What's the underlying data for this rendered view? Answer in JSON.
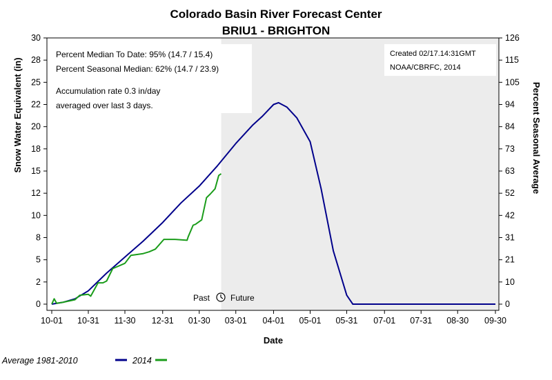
{
  "chart_data": {
    "type": "line",
    "title": "Colorado Basin River Forecast Center",
    "subtitle": "BRIU1 - BRIGHTON",
    "xlabel": "Date",
    "ylabel": "Snow Water Equivalent (in)",
    "ylabel_right": "Percent Seasonal Average",
    "x_ticks": [
      "10-01",
      "10-31",
      "11-30",
      "12-31",
      "01-30",
      "03-01",
      "04-01",
      "05-01",
      "05-31",
      "07-01",
      "07-31",
      "08-30",
      "09-30"
    ],
    "y_ticks": [
      "0",
      "2",
      "5",
      "8",
      "10",
      "12",
      "15",
      "18",
      "20",
      "22",
      "25",
      "28",
      "30"
    ],
    "y_ticks_right": [
      "0",
      "10",
      "21",
      "31",
      "42",
      "52",
      "63",
      "73",
      "84",
      "94",
      "105",
      "115",
      "126"
    ],
    "ylim": [
      0,
      30
    ],
    "ylim_right": [
      0,
      126
    ],
    "x_range": [
      "10-01",
      "09-30"
    ],
    "grid": false,
    "future_shading": {
      "from": "02-17",
      "to": "09-30",
      "color": "#ececec"
    },
    "past_label": "Past",
    "future_label": "Future",
    "info_left": [
      "Percent Median To Date: 95% (14.7 / 15.4)",
      "Percent Seasonal Median: 62% (14.7 / 23.9)",
      "Accumulation rate 0.3 in/day",
      "averaged over last 3 days."
    ],
    "info_right": [
      "Created 02/17.14:31GMT",
      "NOAA/CBRFC, 2014"
    ],
    "legend_placement": "bottom-left",
    "series": [
      {
        "name": "Average 1981-2010",
        "color": "#00008b",
        "x": [
          "10-01",
          "10-10",
          "10-20",
          "10-31",
          "11-15",
          "11-30",
          "12-15",
          "12-31",
          "01-15",
          "01-30",
          "02-14",
          "03-01",
          "03-15",
          "03-23",
          "04-01",
          "04-05",
          "04-12",
          "04-20",
          "05-01",
          "05-10",
          "05-20",
          "05-31",
          "06-05",
          "07-01",
          "07-31",
          "08-30",
          "09-30"
        ],
        "values": [
          0.0,
          0.2,
          0.6,
          1.5,
          3.5,
          5.3,
          7.1,
          9.2,
          11.4,
          13.3,
          15.6,
          18.1,
          20.2,
          21.2,
          22.5,
          22.7,
          22.2,
          21.0,
          18.3,
          13.0,
          6.0,
          1.0,
          0.0,
          0.0,
          0.0,
          0.0,
          0.0
        ]
      },
      {
        "name": "2014",
        "color": "#1a9c1a",
        "x": [
          "10-01",
          "10-03",
          "10-05",
          "10-10",
          "10-20",
          "10-24",
          "10-31",
          "11-02",
          "11-08",
          "11-12",
          "11-15",
          "11-20",
          "11-30",
          "12-05",
          "12-15",
          "12-20",
          "12-25",
          "01-01",
          "01-10",
          "01-20",
          "01-21",
          "01-25",
          "01-27",
          "01-29",
          "02-01",
          "02-05",
          "02-08",
          "02-12",
          "02-15",
          "02-17"
        ],
        "values": [
          0.0,
          0.6,
          0.1,
          0.2,
          0.5,
          1.0,
          1.1,
          0.9,
          2.4,
          2.4,
          2.6,
          4.0,
          4.6,
          5.5,
          5.7,
          5.9,
          6.2,
          7.3,
          7.3,
          7.2,
          7.6,
          8.9,
          9.0,
          9.2,
          9.5,
          12.0,
          12.4,
          13.0,
          14.5,
          14.7
        ]
      }
    ]
  }
}
